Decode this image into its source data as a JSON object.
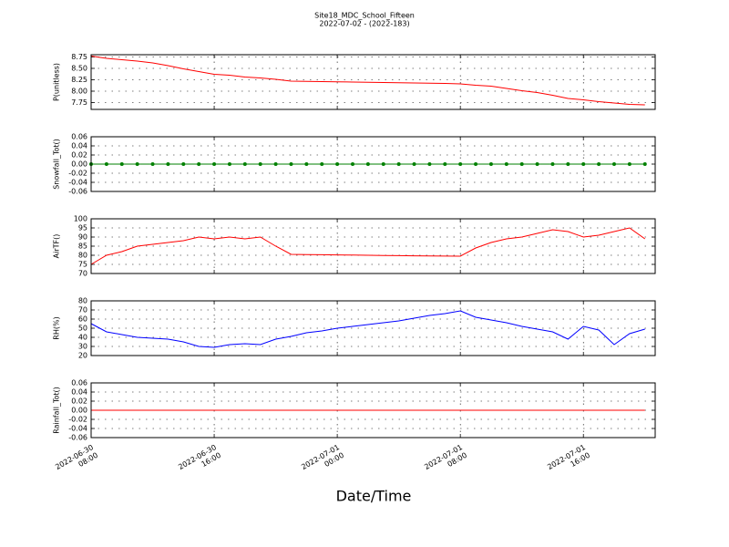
{
  "title": "Site18_MDC_School_Fifteen",
  "subtitle": "2022-07-02 - (2022-183)",
  "xlabel": "Date/Time",
  "x": [
    "2022-06-30 08:00",
    "2022-06-30 09:00",
    "2022-06-30 10:00",
    "2022-06-30 11:00",
    "2022-06-30 12:00",
    "2022-06-30 13:00",
    "2022-06-30 14:00",
    "2022-06-30 15:00",
    "2022-06-30 16:00",
    "2022-06-30 17:00",
    "2022-06-30 18:00",
    "2022-06-30 19:00",
    "2022-06-30 20:00",
    "2022-06-30 21:00",
    "2022-06-30 22:00",
    "2022-06-30 23:00",
    "2022-07-01 00:00",
    "2022-07-01 01:00",
    "2022-07-01 02:00",
    "2022-07-01 03:00",
    "2022-07-01 04:00",
    "2022-07-01 05:00",
    "2022-07-01 06:00",
    "2022-07-01 07:00",
    "2022-07-01 08:00",
    "2022-07-01 09:00",
    "2022-07-01 10:00",
    "2022-07-01 11:00",
    "2022-07-01 12:00",
    "2022-07-01 13:00",
    "2022-07-01 14:00",
    "2022-07-01 15:00",
    "2022-07-01 16:00",
    "2022-07-01 17:00",
    "2022-07-01 18:00",
    "2022-07-01 19:00",
    "2022-07-01 20:00"
  ],
  "xlim": [
    "2022-06-30 08:00",
    "2022-07-01 20:40"
  ],
  "xticks": [
    {
      "value": "2022-06-30 08:00",
      "label": "2022-06-30\n08:00"
    },
    {
      "value": "2022-06-30 16:00",
      "label": "2022-06-30\n16:00"
    },
    {
      "value": "2022-07-01 00:00",
      "label": "2022-07-01\n00:00"
    },
    {
      "value": "2022-07-01 08:00",
      "label": "2022-07-01\n08:00"
    },
    {
      "value": "2022-07-01 16:00",
      "label": "2022-07-01\n16:00"
    }
  ],
  "chart_data": [
    {
      "type": "line",
      "ylabel": "P(unitless)",
      "color": "#ff0000",
      "markers": false,
      "grid": true,
      "ylim": [
        7.6,
        8.8
      ],
      "yticks": [
        7.75,
        {
          "value": 8,
          "label": "8.00"
        },
        8.25,
        {
          "value": 8.5,
          "label": "8.50"
        },
        8.75
      ],
      "values": [
        8.77,
        8.72,
        8.69,
        8.66,
        8.62,
        8.56,
        8.49,
        8.43,
        8.37,
        8.35,
        8.31,
        8.29,
        8.26,
        8.22,
        8.215,
        8.21,
        8.205,
        8.2,
        8.195,
        8.19,
        8.185,
        8.18,
        8.175,
        8.17,
        8.16,
        8.13,
        8.11,
        8.06,
        8.01,
        7.97,
        7.91,
        7.84,
        7.81,
        7.77,
        7.74,
        7.71,
        7.7
      ]
    },
    {
      "type": "line",
      "ylabel": "Snowfall_Tot()",
      "color": "#008000",
      "markers": true,
      "grid": true,
      "ylim": [
        -0.06,
        0.06
      ],
      "yticks": [
        -0.06,
        -0.04,
        -0.02,
        {
          "value": 0,
          "label": "0.00"
        },
        0.02,
        0.04,
        0.06
      ],
      "values": [
        0,
        0,
        0,
        0,
        0,
        0,
        0,
        0,
        0,
        0,
        0,
        0,
        0,
        0,
        0,
        0,
        0,
        0,
        0,
        0,
        0,
        0,
        0,
        0,
        0,
        0,
        0,
        0,
        0,
        0,
        0,
        0,
        0,
        0,
        0,
        0,
        0
      ]
    },
    {
      "type": "line",
      "ylabel": "AirTF()",
      "color": "#ff0000",
      "markers": false,
      "grid": true,
      "ylim": [
        70,
        100
      ],
      "yticks": [
        70,
        75,
        80,
        85,
        90,
        95,
        100
      ],
      "values": [
        75,
        80,
        82,
        85,
        86,
        87,
        88,
        90,
        89,
        90,
        89,
        90,
        85,
        80.5,
        80.4,
        80.3,
        80.2,
        80.1,
        80,
        79.9,
        79.8,
        79.7,
        79.6,
        79.55,
        79.5,
        84,
        87,
        89,
        90,
        92,
        94,
        93,
        90,
        91,
        93,
        95,
        89
      ]
    },
    {
      "type": "line",
      "ylabel": "RH(%)",
      "color": "#0000ff",
      "markers": false,
      "grid": true,
      "ylim": [
        20,
        80
      ],
      "yticks": [
        20,
        30,
        40,
        50,
        60,
        70,
        80
      ],
      "values": [
        55,
        46,
        43,
        40,
        39,
        38,
        35,
        30,
        29,
        32,
        33,
        32,
        38,
        41,
        45,
        47,
        50,
        52,
        54,
        56,
        58,
        61,
        64,
        66,
        69,
        62,
        59,
        56,
        52,
        49,
        46,
        38,
        52,
        48,
        32,
        44,
        49
      ]
    },
    {
      "type": "line",
      "ylabel": "Rainfall_Tot()",
      "color": "#ff0000",
      "markers": false,
      "grid": true,
      "ylim": [
        -0.06,
        0.06
      ],
      "yticks": [
        -0.06,
        -0.04,
        -0.02,
        {
          "value": 0,
          "label": "0.00"
        },
        0.02,
        0.04,
        0.06
      ],
      "values": [
        0,
        0,
        0,
        0,
        0,
        0,
        0,
        0,
        0,
        0,
        0,
        0,
        0,
        0,
        0,
        0,
        0,
        0,
        0,
        0,
        0,
        0,
        0,
        0,
        0,
        0,
        0,
        0,
        0,
        0,
        0,
        0,
        0,
        0,
        0,
        0,
        0
      ]
    }
  ]
}
